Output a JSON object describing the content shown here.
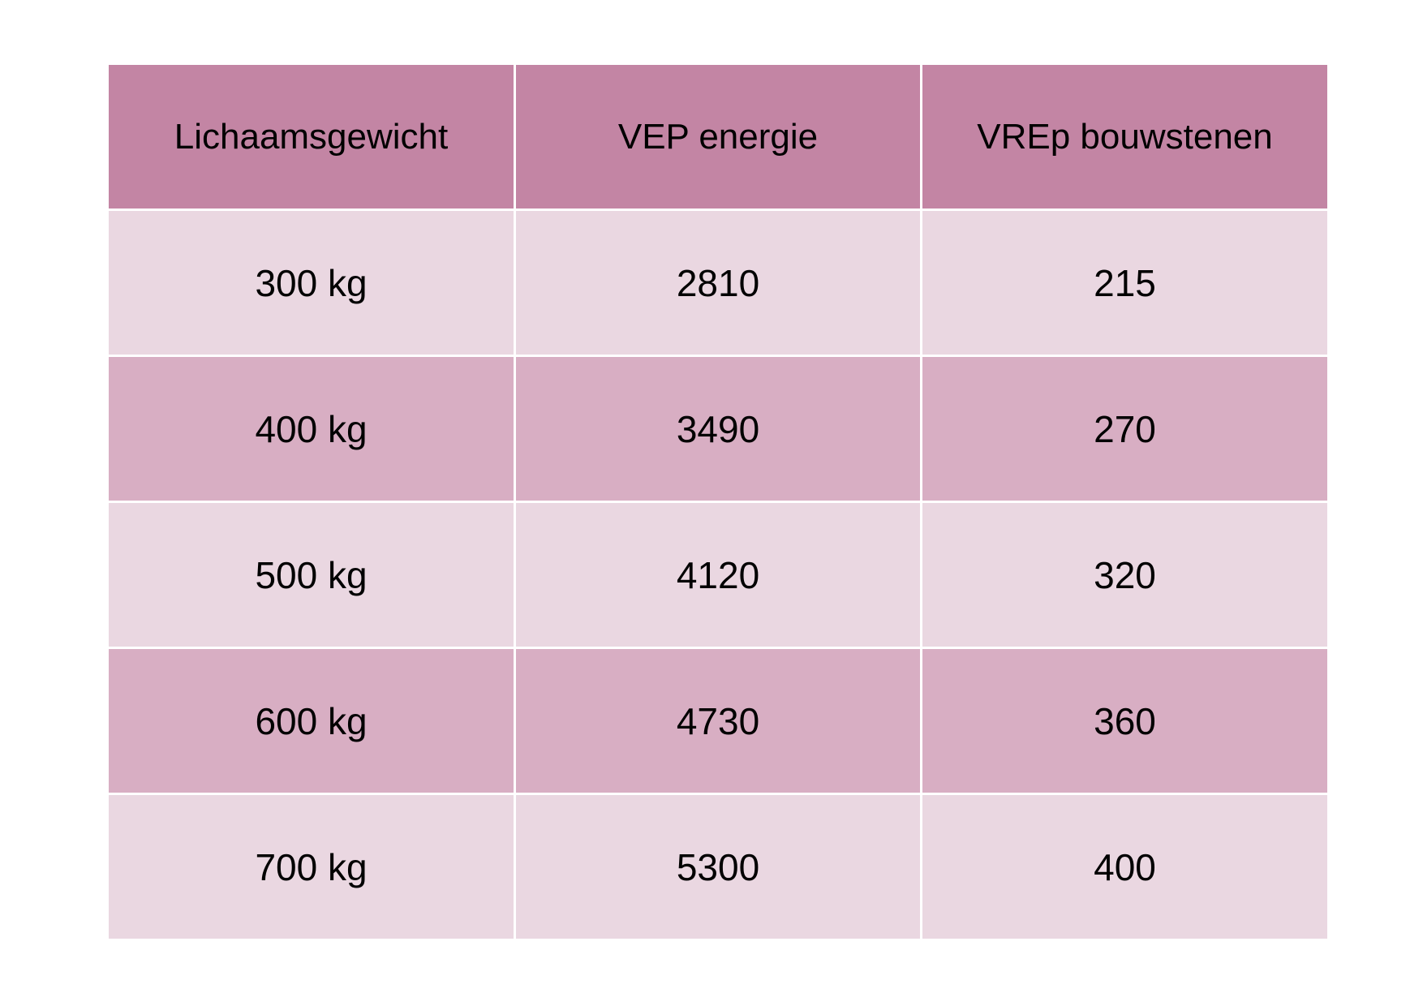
{
  "colors": {
    "header_bg": "#c385a4",
    "row_light_bg": "#ead7e1",
    "row_dark_bg": "#d8aec3"
  },
  "table": {
    "headers": [
      "Lichaamsgewicht",
      "VEP energie",
      "VREp bouwstenen"
    ],
    "rows": [
      [
        "300 kg",
        "2810",
        "215"
      ],
      [
        "400 kg",
        "3490",
        "270"
      ],
      [
        "500 kg",
        "4120",
        "320"
      ],
      [
        "600 kg",
        "4730",
        "360"
      ],
      [
        "700 kg",
        "5300",
        "400"
      ]
    ]
  }
}
